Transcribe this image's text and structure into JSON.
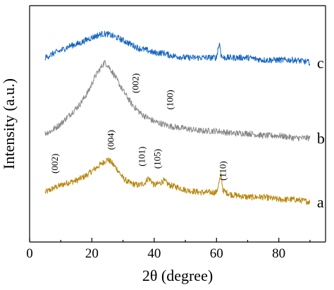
{
  "chart_data": {
    "type": "line",
    "title": "",
    "xlabel": "2θ (degree)",
    "ylabel": "Intensity (a.u.)",
    "xlim": [
      0,
      95
    ],
    "ylim": [
      0,
      100
    ],
    "x_ticks": [
      0,
      20,
      40,
      60,
      80
    ],
    "y_ticks": [],
    "grid": false,
    "legend": "none",
    "series": [
      {
        "name": "a",
        "color": "#b8860b",
        "points": [
          [
            5,
            21
          ],
          [
            8,
            23
          ],
          [
            10,
            24
          ],
          [
            12,
            25
          ],
          [
            15,
            26
          ],
          [
            18,
            28
          ],
          [
            20,
            30
          ],
          [
            22,
            32
          ],
          [
            24,
            34
          ],
          [
            25,
            35
          ],
          [
            26,
            34
          ],
          [
            28,
            31
          ],
          [
            30,
            27
          ],
          [
            32,
            25
          ],
          [
            35,
            24
          ],
          [
            37,
            25
          ],
          [
            38,
            27
          ],
          [
            39,
            26
          ],
          [
            40,
            24
          ],
          [
            42,
            25
          ],
          [
            43,
            26
          ],
          [
            45,
            24
          ],
          [
            48,
            23
          ],
          [
            50,
            22
          ],
          [
            55,
            21
          ],
          [
            58,
            21
          ],
          [
            60,
            21
          ],
          [
            61,
            26
          ],
          [
            61.5,
            29
          ],
          [
            62,
            22
          ],
          [
            63,
            21
          ],
          [
            65,
            20
          ],
          [
            70,
            19
          ],
          [
            75,
            19
          ],
          [
            80,
            18
          ],
          [
            85,
            18
          ],
          [
            90,
            17
          ]
        ]
      },
      {
        "name": "b",
        "color": "#8a8a8a",
        "points": [
          [
            5,
            46
          ],
          [
            7,
            47
          ],
          [
            10,
            50
          ],
          [
            13,
            54
          ],
          [
            16,
            58
          ],
          [
            19,
            64
          ],
          [
            21,
            70
          ],
          [
            23,
            74
          ],
          [
            24,
            76
          ],
          [
            25,
            75
          ],
          [
            27,
            71
          ],
          [
            30,
            64
          ],
          [
            33,
            58
          ],
          [
            36,
            54
          ],
          [
            40,
            51
          ],
          [
            45,
            49
          ],
          [
            50,
            48
          ],
          [
            55,
            47
          ],
          [
            60,
            47
          ],
          [
            65,
            46
          ],
          [
            70,
            46
          ],
          [
            75,
            45
          ],
          [
            80,
            45
          ],
          [
            85,
            44
          ],
          [
            90,
            44
          ]
        ]
      },
      {
        "name": "c",
        "color": "#1565c0",
        "points": [
          [
            5,
            78
          ],
          [
            8,
            80
          ],
          [
            10,
            81
          ],
          [
            13,
            83
          ],
          [
            16,
            84
          ],
          [
            19,
            86
          ],
          [
            21,
            87
          ],
          [
            23,
            88
          ],
          [
            25,
            88
          ],
          [
            27,
            87
          ],
          [
            29,
            86
          ],
          [
            32,
            84
          ],
          [
            35,
            82
          ],
          [
            38,
            81
          ],
          [
            40,
            80
          ],
          [
            43,
            80
          ],
          [
            45,
            79
          ],
          [
            50,
            78
          ],
          [
            55,
            78
          ],
          [
            60,
            78
          ],
          [
            60.5,
            82
          ],
          [
            61,
            84
          ],
          [
            61.5,
            79
          ],
          [
            62,
            78
          ],
          [
            65,
            78
          ],
          [
            70,
            78
          ],
          [
            75,
            77
          ],
          [
            80,
            77
          ],
          [
            85,
            77
          ],
          [
            90,
            76
          ]
        ]
      }
    ],
    "series_labels": [
      "c",
      "b",
      "a"
    ],
    "annotations": [
      {
        "text": "(002)",
        "x": 9,
        "y": 29,
        "series": "a"
      },
      {
        "text": "(004)",
        "x": 27,
        "y": 39,
        "series": "a"
      },
      {
        "text": "(101)",
        "x": 37,
        "y": 32,
        "series": "a"
      },
      {
        "text": "(105)",
        "x": 42,
        "y": 31,
        "series": "a"
      },
      {
        "text": "(110)",
        "x": 63,
        "y": 26,
        "series": "a"
      },
      {
        "text": "(002)",
        "x": 35,
        "y": 63,
        "series": "b"
      },
      {
        "text": "(100)",
        "x": 46,
        "y": 56,
        "series": "b"
      }
    ]
  }
}
